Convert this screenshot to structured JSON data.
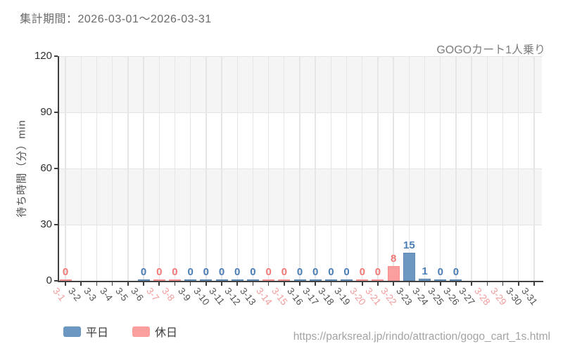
{
  "header": {
    "period_label": "集計期間：2026-03-01〜2026-03-31"
  },
  "footer": {
    "url": "https://parksreal.jp/rindo/attraction/gogo_cart_1s.html"
  },
  "legend": {
    "items": [
      {
        "label": "平日",
        "key": "weekday",
        "color": "#6b97c1"
      },
      {
        "label": "休日",
        "key": "holiday",
        "color": "#fa9e9e"
      }
    ]
  },
  "colors": {
    "weekday_bar": "#6b97c1",
    "weekday_bar_border": "#5e8bb6",
    "holiday_bar": "#fa9e9e",
    "holiday_bar_border": "#f59090",
    "weekday_value_label": "#4a7db3",
    "holiday_value_label": "#f27878",
    "weekday_tick_label": "#525252",
    "holiday_tick_label": "#f19b9b",
    "band_gray": "#f5f5f6",
    "grid": "#e5e5e5",
    "axis": "#3f3f3f"
  },
  "chart_data": {
    "type": "bar",
    "title": "GOGOカート1人乗り",
    "xlabel": "",
    "ylabel": "待ち時間（分）min",
    "ylim": [
      0,
      120
    ],
    "yticks": [
      0,
      30,
      60,
      90,
      120
    ],
    "legend_position": "bottom-left",
    "grid": "striped-bands-with-vertical-lines",
    "series_names": [
      "平日",
      "休日"
    ],
    "days": [
      {
        "label": "3-1",
        "type": "holiday",
        "value": 0
      },
      {
        "label": "3-2",
        "type": "weekday",
        "value": null
      },
      {
        "label": "3-3",
        "type": "weekday",
        "value": null
      },
      {
        "label": "3-4",
        "type": "weekday",
        "value": null
      },
      {
        "label": "3-5",
        "type": "weekday",
        "value": null
      },
      {
        "label": "3-6",
        "type": "weekday",
        "value": 0
      },
      {
        "label": "3-7",
        "type": "holiday",
        "value": 0
      },
      {
        "label": "3-8",
        "type": "holiday",
        "value": 0
      },
      {
        "label": "3-9",
        "type": "weekday",
        "value": 0
      },
      {
        "label": "3-10",
        "type": "weekday",
        "value": 0
      },
      {
        "label": "3-11",
        "type": "weekday",
        "value": 0
      },
      {
        "label": "3-12",
        "type": "weekday",
        "value": 0
      },
      {
        "label": "3-13",
        "type": "weekday",
        "value": 0
      },
      {
        "label": "3-14",
        "type": "holiday",
        "value": 0
      },
      {
        "label": "3-15",
        "type": "holiday",
        "value": 0
      },
      {
        "label": "3-16",
        "type": "weekday",
        "value": 0
      },
      {
        "label": "3-17",
        "type": "weekday",
        "value": 0
      },
      {
        "label": "3-18",
        "type": "weekday",
        "value": 0
      },
      {
        "label": "3-19",
        "type": "weekday",
        "value": 0
      },
      {
        "label": "3-20",
        "type": "holiday",
        "value": 0
      },
      {
        "label": "3-21",
        "type": "holiday",
        "value": 0
      },
      {
        "label": "3-22",
        "type": "holiday",
        "value": 8
      },
      {
        "label": "3-23",
        "type": "weekday",
        "value": 15
      },
      {
        "label": "3-24",
        "type": "weekday",
        "value": 1
      },
      {
        "label": "3-25",
        "type": "weekday",
        "value": 0
      },
      {
        "label": "3-26",
        "type": "weekday",
        "value": 0
      },
      {
        "label": "3-27",
        "type": "weekday",
        "value": null
      },
      {
        "label": "3-28",
        "type": "holiday",
        "value": null
      },
      {
        "label": "3-29",
        "type": "holiday",
        "value": null
      },
      {
        "label": "3-30",
        "type": "weekday",
        "value": null
      },
      {
        "label": "3-31",
        "type": "weekday",
        "value": null
      }
    ]
  }
}
